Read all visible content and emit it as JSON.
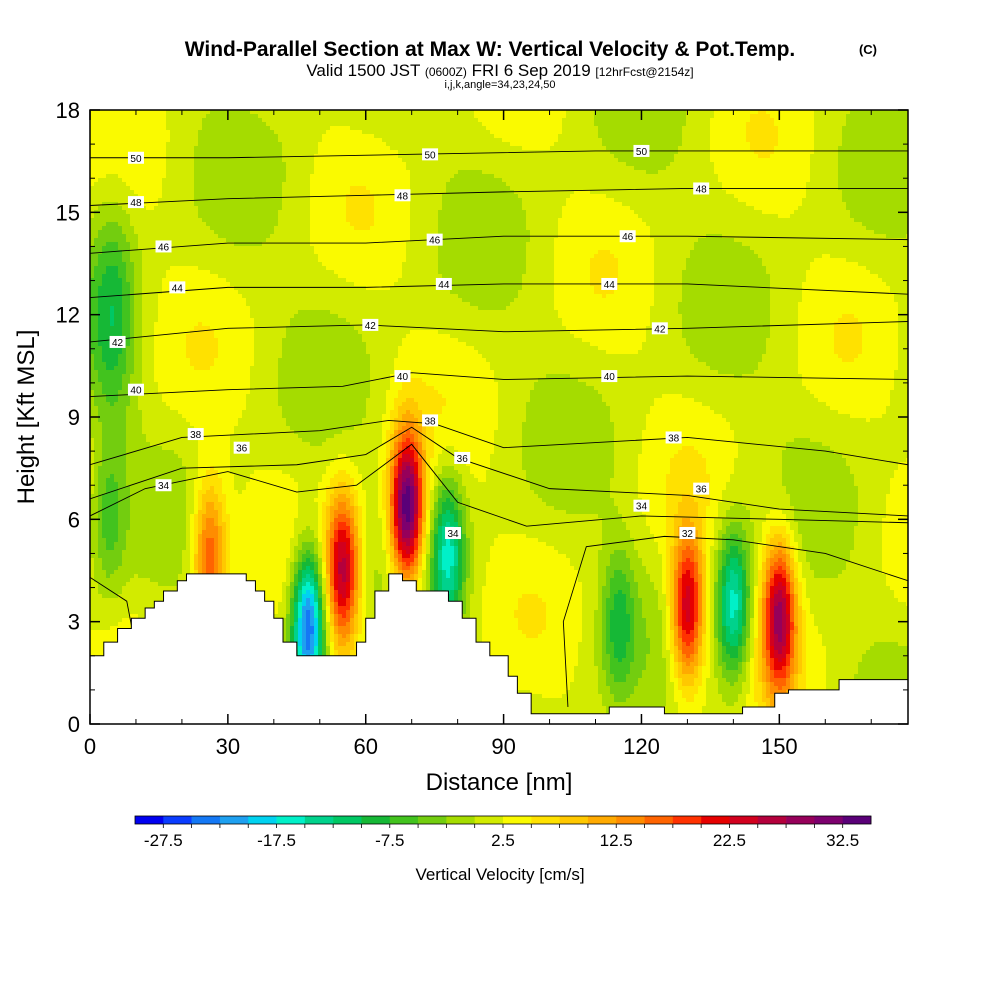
{
  "chart_data": {
    "type": "heatmap",
    "title": "Wind-Parallel Section at Max W: Vertical Velocity & Pot.Temp.",
    "title_mark": "(C)",
    "subtitle": {
      "valid_prefix": "Valid 1500 JST",
      "utc": "(0600Z)",
      "date": "FRI 6 Sep 2019",
      "forecast": "[12hrFcst@2154z]"
    },
    "params": "i,j,k,angle=34,23,24,50",
    "xlabel": "Distance [nm]",
    "ylabel": "Height [Kft MSL]",
    "xlim": [
      0,
      178
    ],
    "ylim": [
      0,
      18
    ],
    "x_ticks": [
      0,
      30,
      60,
      90,
      120,
      150
    ],
    "y_ticks": [
      0,
      3,
      6,
      9,
      12,
      15,
      18
    ],
    "colorbar": {
      "label": "Vertical Velocity [cm/s]",
      "tick_labels": [
        "-27.5",
        "-17.5",
        "-7.5",
        "2.5",
        "12.5",
        "22.5",
        "32.5"
      ],
      "levels_from": -30,
      "levels_step": 2.5,
      "colors": [
        "#0000f0",
        "#0a3cff",
        "#1478f5",
        "#1ea0f0",
        "#00d2f0",
        "#00f0c8",
        "#00d28c",
        "#00c864",
        "#16b836",
        "#42c31e",
        "#73cd0f",
        "#a5dc00",
        "#d2eb00",
        "#fafa00",
        "#ffe100",
        "#ffc800",
        "#ffaa00",
        "#ff8c00",
        "#ff6400",
        "#ff3200",
        "#e60000",
        "#d2001e",
        "#b4003c",
        "#96005a",
        "#7d006e",
        "#5a0078"
      ]
    },
    "w_cells": [
      {
        "x": 5,
        "y": 12,
        "w": -9
      },
      {
        "x": 4,
        "y": 6,
        "w": -7
      },
      {
        "x": 26,
        "y": 5,
        "w": 16
      },
      {
        "x": 47.5,
        "y": 2.9,
        "w": -27
      },
      {
        "x": 55,
        "y": 4.5,
        "w": 24
      },
      {
        "x": 69,
        "y": 6.3,
        "w": 34
      },
      {
        "x": 78,
        "y": 5,
        "w": -16
      },
      {
        "x": 130,
        "y": 3.4,
        "w": 24
      },
      {
        "x": 140,
        "y": 3.5,
        "w": -18
      },
      {
        "x": 150,
        "y": 3.2,
        "w": 26
      },
      {
        "x": 115,
        "y": 3,
        "w": -9
      }
    ],
    "theta_lines": [
      {
        "label": "32",
        "points": [
          [
            0,
            4.3
          ],
          [
            8,
            3.6
          ],
          [
            10,
            2.2
          ]
        ]
      },
      {
        "label": "32",
        "points": [
          [
            104,
            0.5
          ],
          [
            103,
            3
          ],
          [
            108,
            5.2
          ],
          [
            125,
            5.5
          ],
          [
            140,
            5.4
          ],
          [
            160,
            5
          ],
          [
            178,
            4.2
          ]
        ]
      },
      {
        "label": "34",
        "points": [
          [
            0,
            6.1
          ],
          [
            12,
            6.9
          ],
          [
            30,
            7.4
          ],
          [
            45,
            6.8
          ],
          [
            58,
            7
          ],
          [
            70,
            8.2
          ],
          [
            80,
            6.5
          ],
          [
            95,
            5.8
          ],
          [
            120,
            6.1
          ],
          [
            150,
            6
          ],
          [
            178,
            5.9
          ]
        ]
      },
      {
        "label": "36",
        "points": [
          [
            0,
            6.6
          ],
          [
            20,
            7.5
          ],
          [
            45,
            7.6
          ],
          [
            60,
            7.9
          ],
          [
            70,
            8.7
          ],
          [
            80,
            7.8
          ],
          [
            100,
            6.9
          ],
          [
            130,
            6.7
          ],
          [
            150,
            6.3
          ],
          [
            178,
            6.1
          ]
        ]
      },
      {
        "label": "38",
        "points": [
          [
            0,
            7.6
          ],
          [
            20,
            8.4
          ],
          [
            50,
            8.6
          ],
          [
            65,
            8.9
          ],
          [
            75,
            8.8
          ],
          [
            90,
            8.1
          ],
          [
            130,
            8.4
          ],
          [
            160,
            8
          ],
          [
            178,
            7.6
          ]
        ]
      },
      {
        "label": "40",
        "points": [
          [
            0,
            9.6
          ],
          [
            30,
            9.8
          ],
          [
            55,
            9.9
          ],
          [
            70,
            10.3
          ],
          [
            90,
            10.1
          ],
          [
            130,
            10.2
          ],
          [
            178,
            10.1
          ]
        ]
      },
      {
        "label": "42",
        "points": [
          [
            0,
            11.2
          ],
          [
            30,
            11.6
          ],
          [
            60,
            11.7
          ],
          [
            90,
            11.5
          ],
          [
            130,
            11.6
          ],
          [
            178,
            11.8
          ]
        ]
      },
      {
        "label": "44",
        "points": [
          [
            0,
            12.5
          ],
          [
            30,
            12.8
          ],
          [
            60,
            12.8
          ],
          [
            90,
            12.9
          ],
          [
            130,
            12.9
          ],
          [
            178,
            12.6
          ]
        ]
      },
      {
        "label": "46",
        "points": [
          [
            0,
            13.8
          ],
          [
            30,
            14.1
          ],
          [
            60,
            14.1
          ],
          [
            90,
            14.3
          ],
          [
            130,
            14.3
          ],
          [
            178,
            14.2
          ]
        ]
      },
      {
        "label": "48",
        "points": [
          [
            0,
            15.2
          ],
          [
            30,
            15.4
          ],
          [
            60,
            15.5
          ],
          [
            90,
            15.6
          ],
          [
            130,
            15.7
          ],
          [
            178,
            15.7
          ]
        ]
      },
      {
        "label": "50",
        "points": [
          [
            0,
            16.6
          ],
          [
            30,
            16.6
          ],
          [
            70,
            16.7
          ],
          [
            110,
            16.8
          ],
          [
            178,
            16.8
          ]
        ]
      }
    ],
    "theta_labels": [
      {
        "text": "50",
        "x": 10,
        "y": 16.6
      },
      {
        "text": "50",
        "x": 74,
        "y": 16.7
      },
      {
        "text": "50",
        "x": 120,
        "y": 16.8
      },
      {
        "text": "48",
        "x": 10,
        "y": 15.3
      },
      {
        "text": "48",
        "x": 68,
        "y": 15.5
      },
      {
        "text": "48",
        "x": 133,
        "y": 15.7
      },
      {
        "text": "46",
        "x": 16,
        "y": 14.0
      },
      {
        "text": "46",
        "x": 75,
        "y": 14.2
      },
      {
        "text": "46",
        "x": 117,
        "y": 14.3
      },
      {
        "text": "44",
        "x": 19,
        "y": 12.8
      },
      {
        "text": "44",
        "x": 77,
        "y": 12.9
      },
      {
        "text": "44",
        "x": 113,
        "y": 12.9
      },
      {
        "text": "42",
        "x": 6,
        "y": 11.2
      },
      {
        "text": "42",
        "x": 61,
        "y": 11.7
      },
      {
        "text": "42",
        "x": 124,
        "y": 11.6
      },
      {
        "text": "40",
        "x": 10,
        "y": 9.8
      },
      {
        "text": "40",
        "x": 68,
        "y": 10.2
      },
      {
        "text": "40",
        "x": 113,
        "y": 10.2
      },
      {
        "text": "38",
        "x": 23,
        "y": 8.5
      },
      {
        "text": "38",
        "x": 74,
        "y": 8.9
      },
      {
        "text": "38",
        "x": 127,
        "y": 8.4
      },
      {
        "text": "36",
        "x": 33,
        "y": 8.1
      },
      {
        "text": "36",
        "x": 81,
        "y": 7.8
      },
      {
        "text": "36",
        "x": 133,
        "y": 6.9
      },
      {
        "text": "34",
        "x": 16,
        "y": 7.0
      },
      {
        "text": "34",
        "x": 79,
        "y": 5.6
      },
      {
        "text": "34",
        "x": 120,
        "y": 6.4
      },
      {
        "text": "32",
        "x": 130,
        "y": 5.6
      }
    ],
    "terrain": [
      [
        0,
        2
      ],
      [
        3,
        2
      ],
      [
        3,
        2.4
      ],
      [
        6,
        2.4
      ],
      [
        6,
        2.8
      ],
      [
        9,
        2.8
      ],
      [
        9,
        3.1
      ],
      [
        12,
        3.1
      ],
      [
        12,
        3.4
      ],
      [
        14,
        3.4
      ],
      [
        14,
        3.6
      ],
      [
        16,
        3.6
      ],
      [
        16,
        3.9
      ],
      [
        19,
        3.9
      ],
      [
        19,
        4.2
      ],
      [
        21,
        4.2
      ],
      [
        21,
        4.4
      ],
      [
        34,
        4.4
      ],
      [
        34,
        4.2
      ],
      [
        36,
        4.2
      ],
      [
        36,
        3.9
      ],
      [
        38,
        3.9
      ],
      [
        38,
        3.6
      ],
      [
        40,
        3.6
      ],
      [
        40,
        3.1
      ],
      [
        42,
        3.1
      ],
      [
        42,
        2.4
      ],
      [
        45,
        2.4
      ],
      [
        45,
        2
      ],
      [
        58,
        2
      ],
      [
        58,
        2.4
      ],
      [
        60,
        2.4
      ],
      [
        60,
        3.1
      ],
      [
        62,
        3.1
      ],
      [
        62,
        3.9
      ],
      [
        65,
        3.9
      ],
      [
        65,
        4.4
      ],
      [
        68,
        4.4
      ],
      [
        68,
        4.2
      ],
      [
        71,
        4.2
      ],
      [
        71,
        3.9
      ],
      [
        78,
        3.9
      ],
      [
        78,
        3.6
      ],
      [
        81,
        3.6
      ],
      [
        81,
        3.1
      ],
      [
        84,
        3.1
      ],
      [
        84,
        2.4
      ],
      [
        87,
        2.4
      ],
      [
        87,
        2
      ],
      [
        91,
        2
      ],
      [
        91,
        1.4
      ],
      [
        93,
        1.4
      ],
      [
        93,
        0.9
      ],
      [
        96,
        0.9
      ],
      [
        96,
        0.3
      ],
      [
        113,
        0.3
      ],
      [
        113,
        0.5
      ],
      [
        125,
        0.5
      ],
      [
        125,
        0.3
      ],
      [
        142,
        0.3
      ],
      [
        142,
        0.5
      ],
      [
        149,
        0.5
      ],
      [
        149,
        0.9
      ],
      [
        152,
        0.9
      ],
      [
        152,
        1
      ],
      [
        163,
        1
      ],
      [
        163,
        1.3
      ],
      [
        178,
        1.3
      ]
    ]
  }
}
